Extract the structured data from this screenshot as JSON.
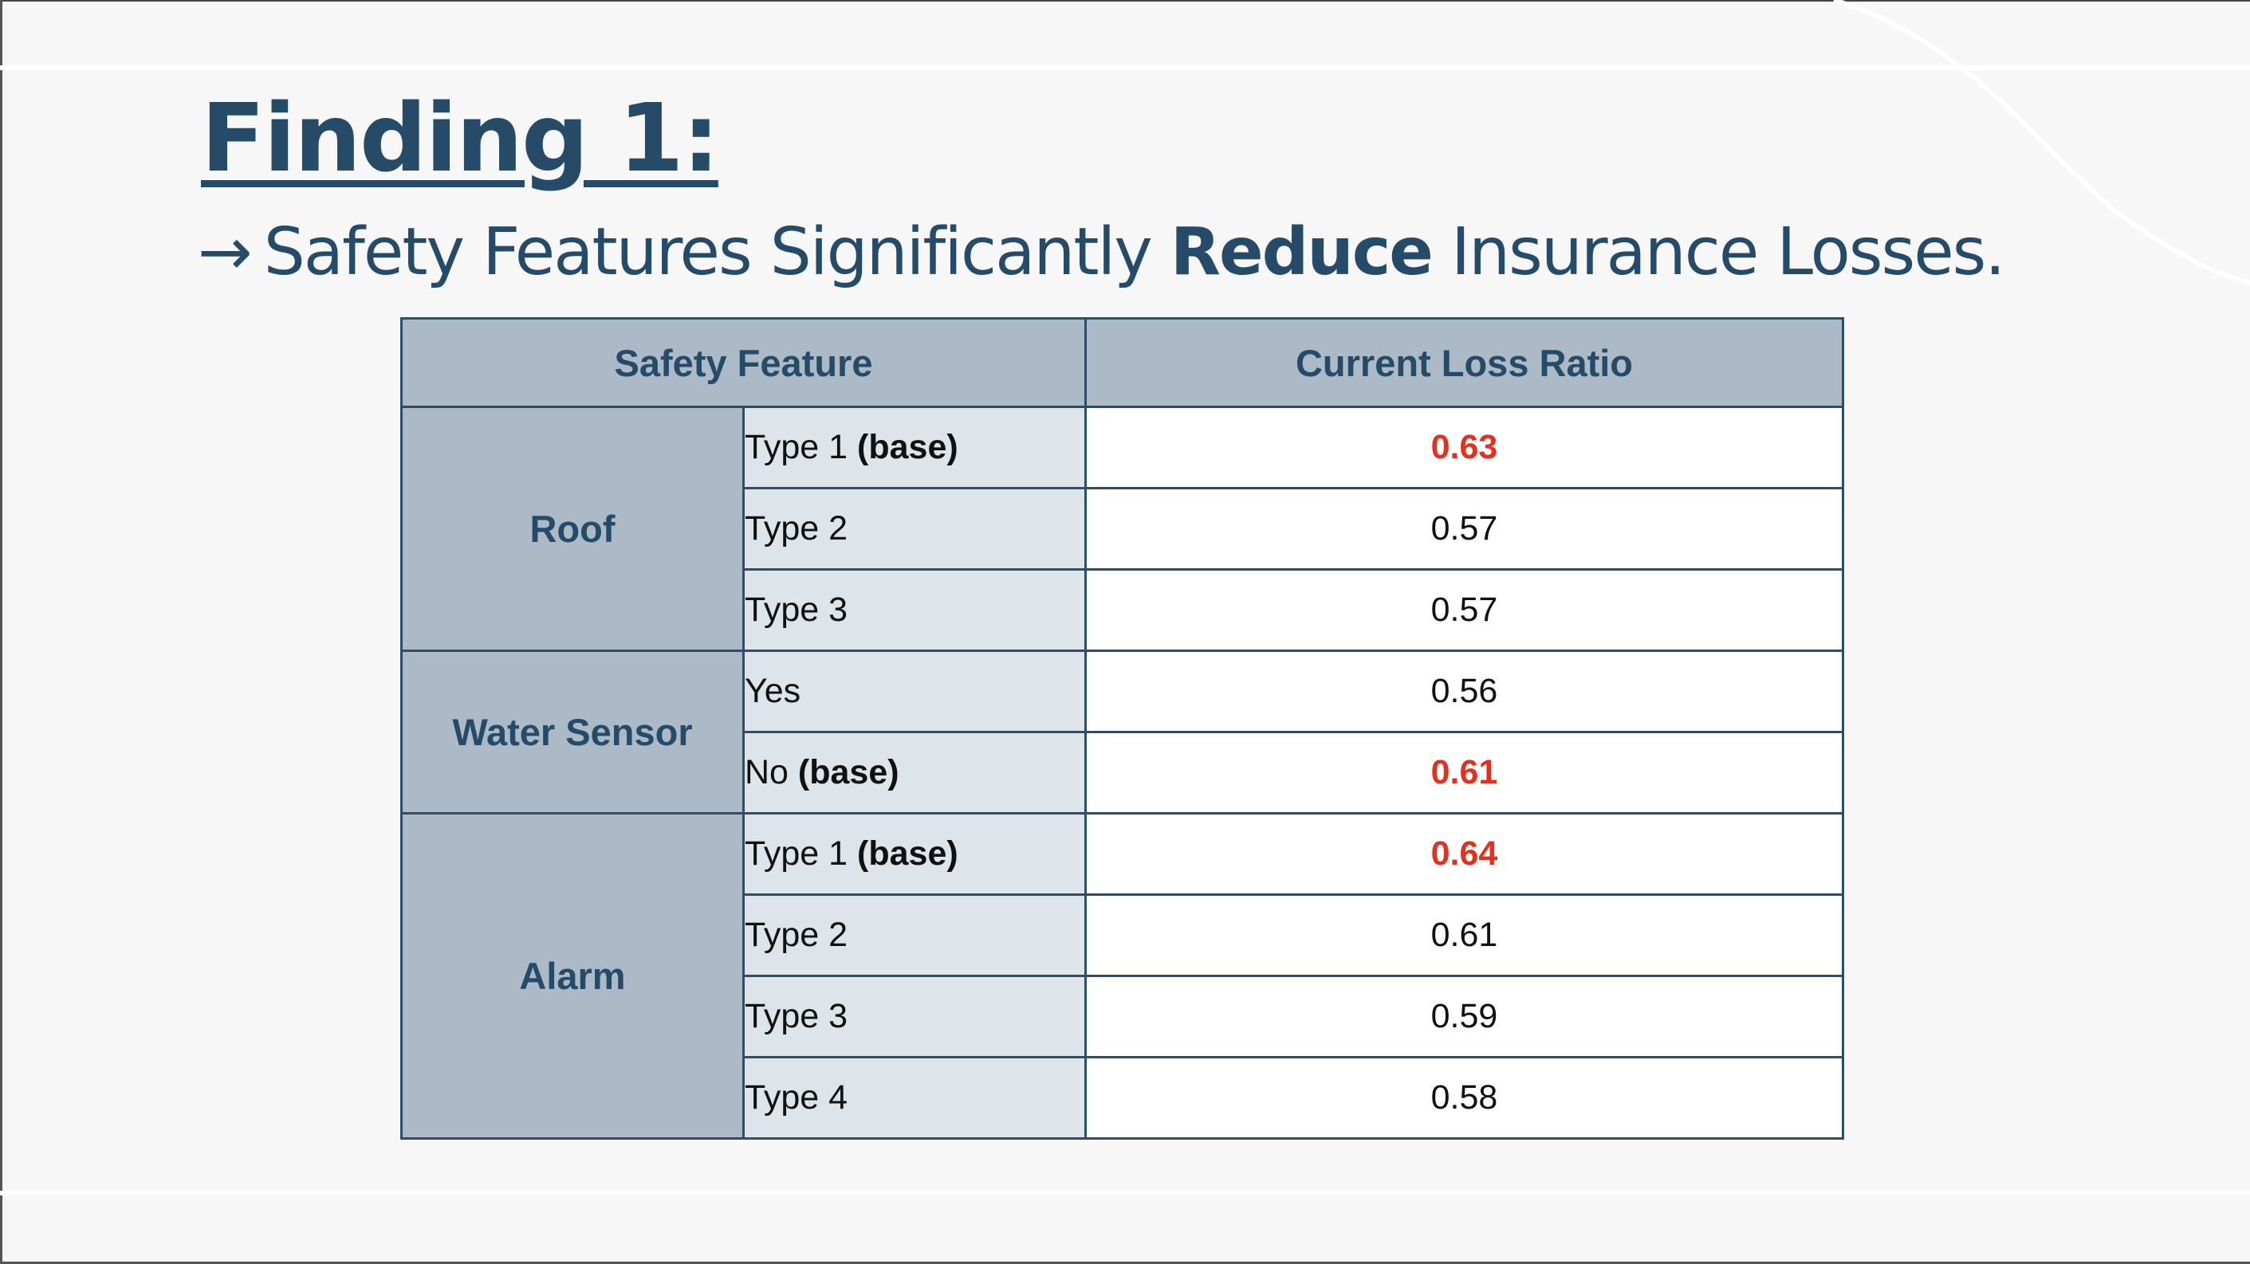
{
  "slide": {
    "title": "Finding 1:",
    "subtitle": {
      "arrow": "→",
      "before": "Safety Features Significantly",
      "emphasis": "Reduce",
      "after": "Insurance Losses."
    }
  },
  "table": {
    "headers": [
      "Safety Feature",
      "Current Loss Ratio"
    ],
    "base_tag": "(base)",
    "highlight_color": "#e2321f",
    "header_color": "#acb9c7",
    "sub_color": "#dde4ea",
    "text_color": "#254b68",
    "groups": [
      {
        "name": "Roof",
        "rows": [
          {
            "label": "Type 1",
            "base": true,
            "value": "0.63"
          },
          {
            "label": "Type 2",
            "base": false,
            "value": "0.57"
          },
          {
            "label": "Type 3",
            "base": false,
            "value": "0.57"
          }
        ]
      },
      {
        "name": "Water Sensor",
        "rows": [
          {
            "label": "Yes",
            "base": false,
            "value": "0.56"
          },
          {
            "label": "No",
            "base": true,
            "value": "0.61"
          }
        ]
      },
      {
        "name": "Alarm",
        "rows": [
          {
            "label": "Type 1",
            "base": true,
            "value": "0.64"
          },
          {
            "label": "Type 2",
            "base": false,
            "value": "0.61"
          },
          {
            "label": "Type 3",
            "base": false,
            "value": "0.59"
          },
          {
            "label": "Type 4",
            "base": false,
            "value": "0.58"
          }
        ]
      }
    ]
  }
}
